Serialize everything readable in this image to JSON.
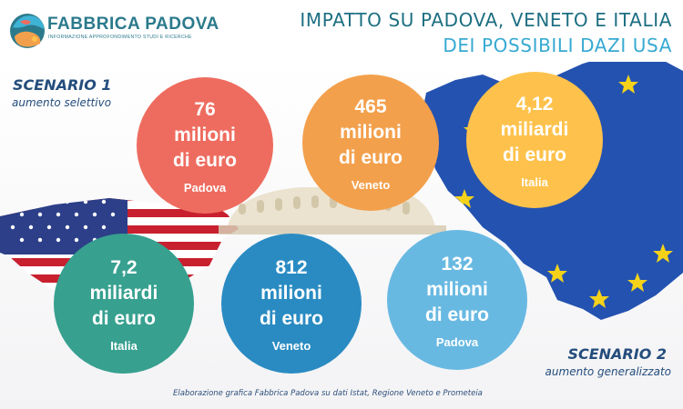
{
  "header": {
    "brand_name": "FABBRICA PADOVA",
    "brand_tagline": "INFORMAZIONE APPROFONDIMENTO STUDI E RICERCHE",
    "title_line1": "IMPATTO SU PADOVA, VENETO E ITALIA",
    "title_line2": "DEI POSSIBILI DAZI USA"
  },
  "scenario1": {
    "title": "SCENARIO 1",
    "subtitle": "aumento selettivo"
  },
  "scenario2": {
    "title": "SCENARIO 2",
    "subtitle": "aumento generalizzato"
  },
  "circles": [
    {
      "amount": "76",
      "unit": "milioni",
      "currency": "di euro",
      "place": "Padova",
      "color": "#ee6c5f"
    },
    {
      "amount": "465",
      "unit": "milioni",
      "currency": "di euro",
      "place": "Veneto",
      "color": "#f3a04c"
    },
    {
      "amount": "4,12",
      "unit": "miliardi",
      "currency": "di euro",
      "place": "Italia",
      "color": "#fec24c"
    },
    {
      "amount": "7,2",
      "unit": "miliardi",
      "currency": "di euro",
      "place": "Italia",
      "color": "#37a08f"
    },
    {
      "amount": "812",
      "unit": "milioni",
      "currency": "di euro",
      "place": "Veneto",
      "color": "#2a8bc2"
    },
    {
      "amount": "132",
      "unit": "milioni",
      "currency": "di euro",
      "place": "Padova",
      "color": "#68b9e2"
    }
  ],
  "footer": {
    "note": "Elaborazione grafica Fabbrica Padova su dati Istat, Regione Veneto e Prometeia"
  },
  "icons": {
    "logo": "fabbrica-padova-logo",
    "us_flag_map": "us-flag-map",
    "eu_flag_map": "eu-flag-map",
    "colosseum": "colosseum"
  }
}
